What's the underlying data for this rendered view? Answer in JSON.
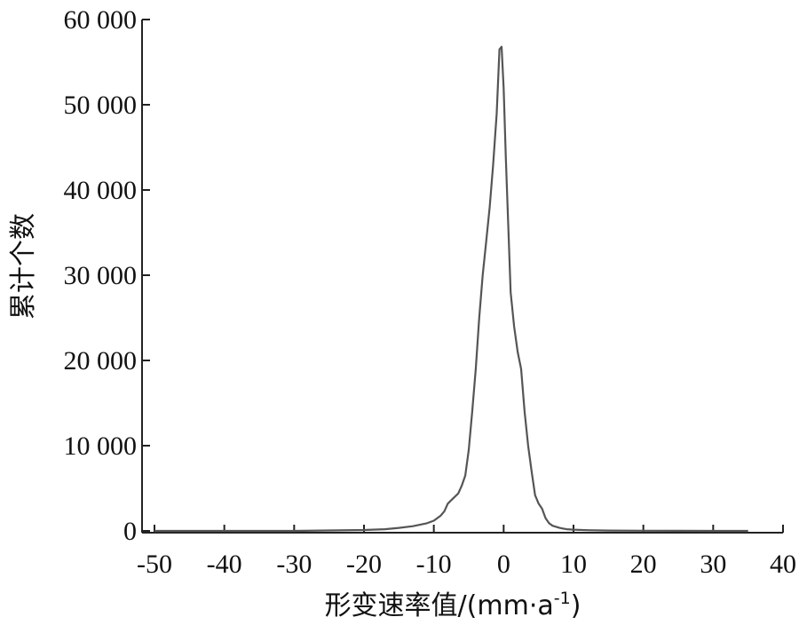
{
  "chart_data": {
    "type": "line",
    "title": "",
    "xlabel": "形变速率值/(mm·a",
    "xlabel_sup": "-1",
    "xlabel_tail": ")",
    "ylabel": "累计个数",
    "xlim": [
      -50,
      40
    ],
    "ylim": [
      0,
      60000
    ],
    "xticks": [
      -50,
      -40,
      -30,
      -20,
      -10,
      0,
      10,
      20,
      30,
      40
    ],
    "xtick_labels": [
      "-50",
      "-40",
      "-30",
      "-20",
      "-10",
      "0",
      "10",
      "20",
      "30",
      "40"
    ],
    "yticks": [
      0,
      10000,
      20000,
      30000,
      40000,
      50000,
      60000
    ],
    "ytick_labels": [
      "0",
      "10 000",
      "20 000",
      "30 000",
      "40 000",
      "50 000",
      "60 000"
    ],
    "grid": false,
    "line_color": "#555555",
    "series": [
      {
        "x": [
          -50,
          -40,
          -30,
          -25,
          -20,
          -17,
          -15,
          -13,
          -11,
          -10,
          -9,
          -8.5,
          -8,
          -7.5,
          -7,
          -6.5,
          -6,
          -5.5,
          -5,
          -4.5,
          -4,
          -3.5,
          -3,
          -2.5,
          -2,
          -1.5,
          -1,
          -0.6,
          -0.3,
          0,
          0.3,
          0.7,
          1,
          1.5,
          2,
          2.5,
          3,
          3.5,
          4,
          4.5,
          5,
          5.5,
          6,
          6.5,
          7,
          8,
          9,
          10,
          12,
          15,
          20,
          25,
          30,
          35
        ],
        "y": [
          0,
          0,
          0,
          50,
          100,
          200,
          350,
          550,
          900,
          1200,
          1800,
          2300,
          3200,
          3600,
          4000,
          4400,
          5300,
          6500,
          9500,
          14000,
          19000,
          25000,
          30000,
          34000,
          38000,
          43000,
          49000,
          56500,
          56800,
          52000,
          44000,
          35000,
          28000,
          24000,
          21000,
          19000,
          14000,
          10000,
          7000,
          4200,
          3200,
          2600,
          1500,
          900,
          600,
          350,
          200,
          150,
          80,
          40,
          20,
          10,
          0,
          0
        ]
      }
    ]
  }
}
